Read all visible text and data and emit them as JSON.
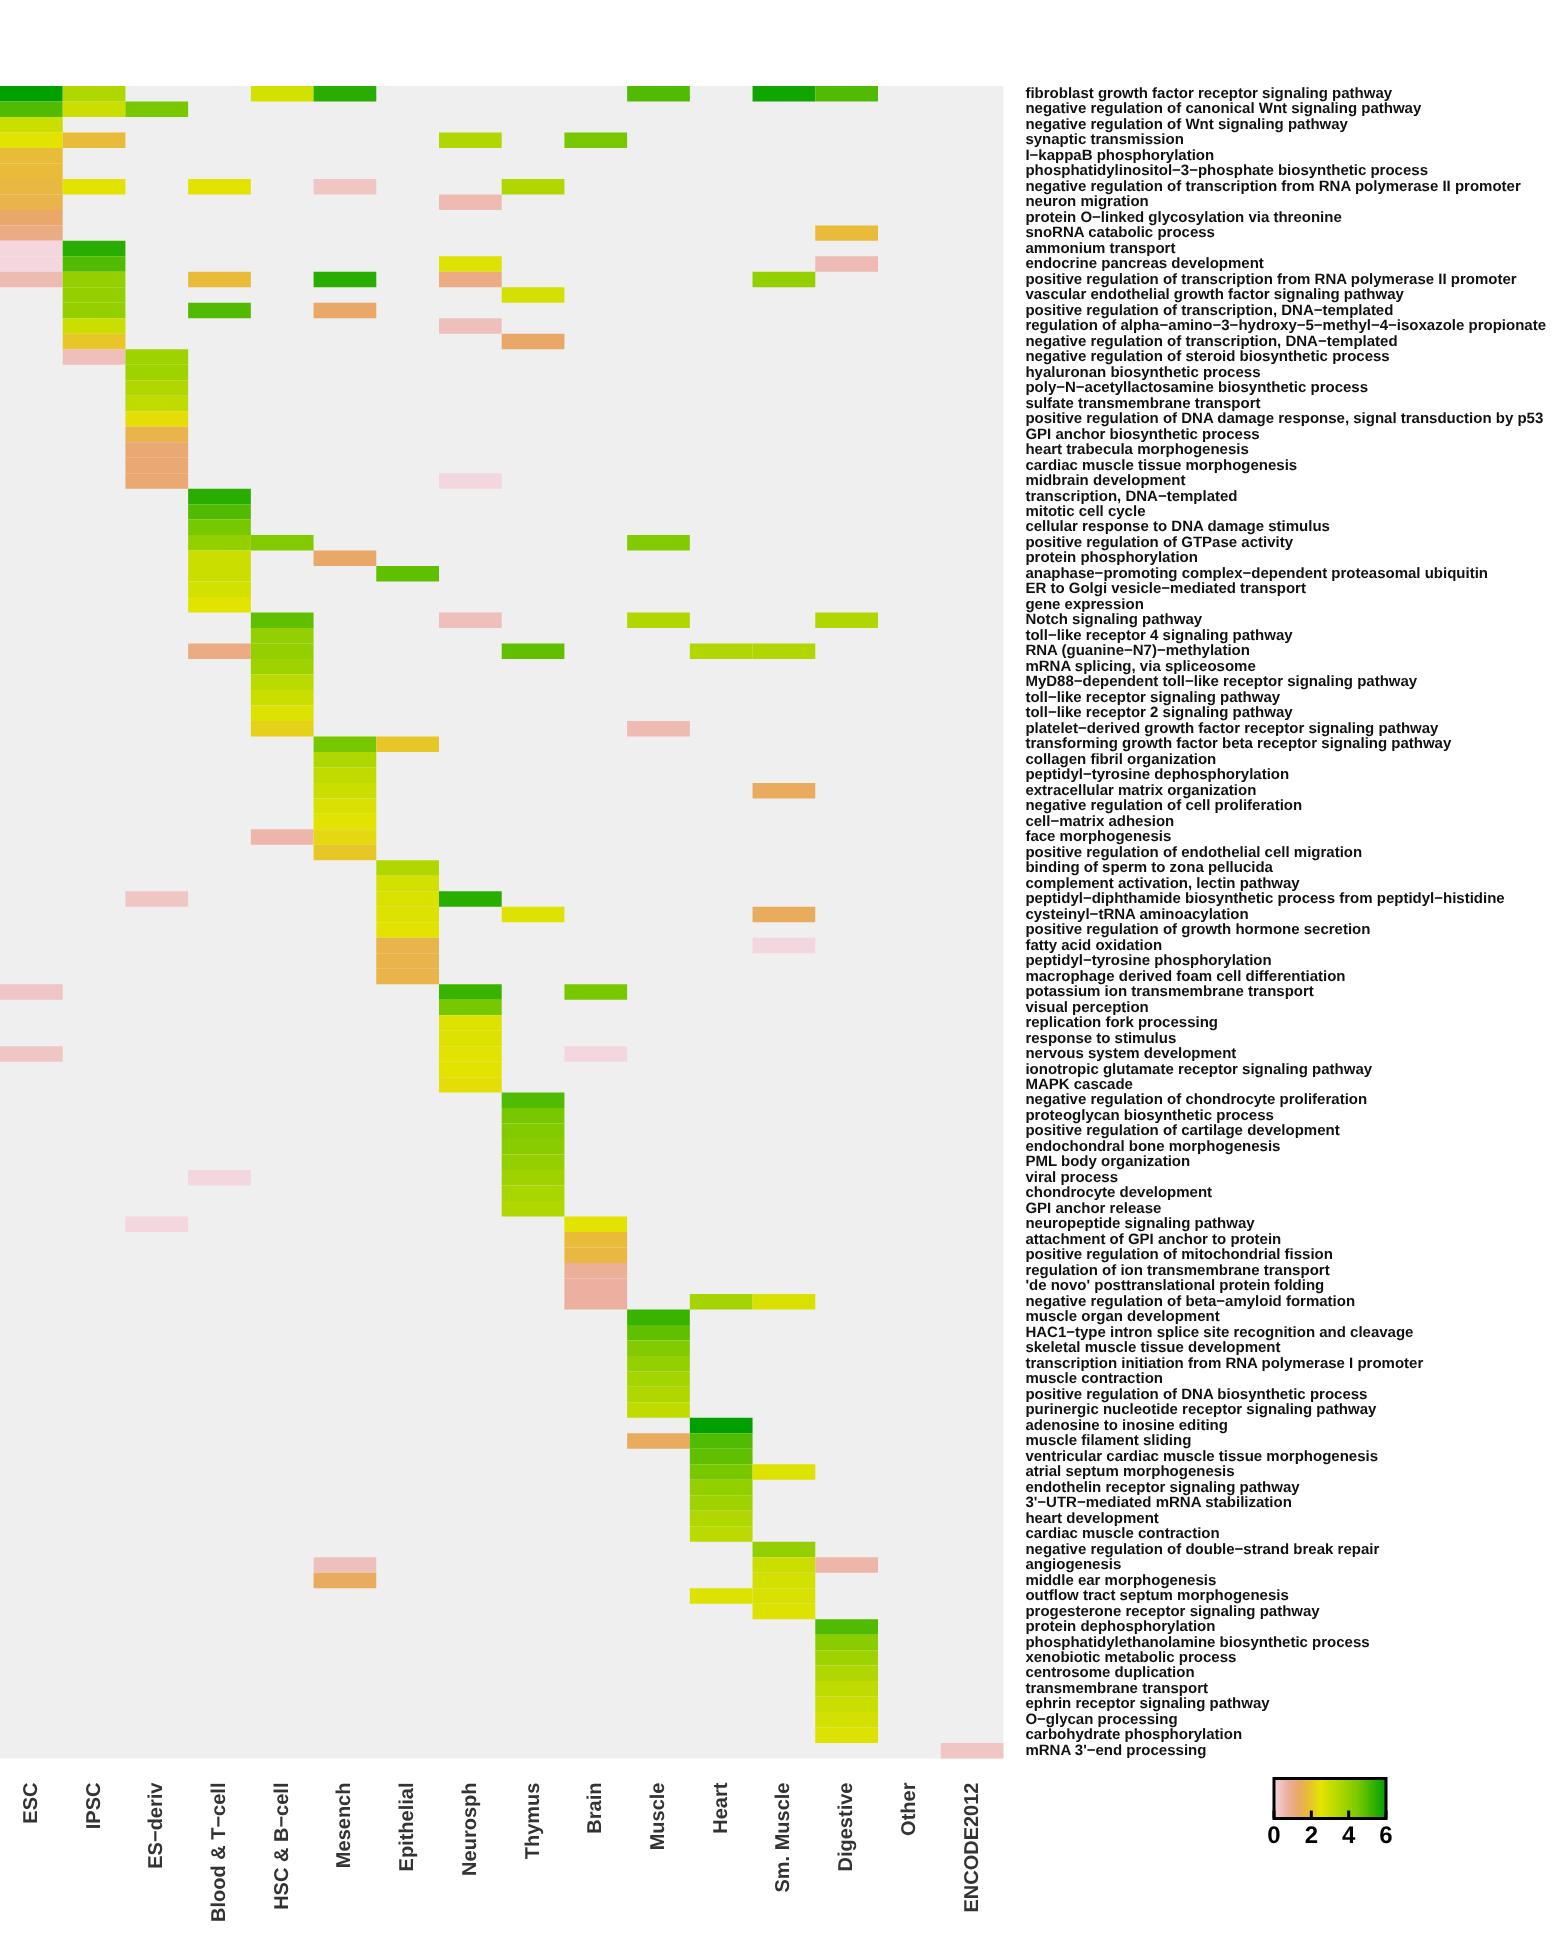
{
  "chart_data": {
    "type": "heatmap",
    "categories": [
      "ESC",
      "IPSC",
      "ES−deriv",
      "Blood & T−cell",
      "HSC & B−cell",
      "Mesench",
      "Epithelial",
      "Neurosph",
      "Thymus",
      "Brain",
      "Muscle",
      "Heart",
      "Sm. Muscle",
      "Digestive",
      "Other",
      "ENCODE2012"
    ],
    "y_categories": [
      "fibroblast growth factor receptor signaling pathway",
      "negative regulation of canonical Wnt signaling pathway",
      "negative regulation of Wnt signaling pathway",
      "synaptic transmission",
      "I−kappaB phosphorylation",
      "phosphatidylinositol−3−phosphate biosynthetic process",
      "negative regulation of transcription from RNA polymerase II promoter",
      "neuron migration",
      "protein O−linked glycosylation via threonine",
      "snoRNA catabolic process",
      "ammonium transport",
      "endocrine pancreas development",
      "positive regulation of transcription from RNA polymerase II promoter",
      "vascular endothelial growth factor signaling pathway",
      "positive regulation of transcription, DNA−templated",
      "regulation of alpha−amino−3−hydroxy−5−methyl−4−isoxazole propionate",
      "negative regulation of transcription, DNA−templated",
      "negative regulation of steroid biosynthetic process",
      "hyaluronan biosynthetic process",
      "poly−N−acetyllactosamine biosynthetic process",
      "sulfate transmembrane transport",
      "positive regulation of DNA damage response, signal transduction by p53",
      "GPI anchor biosynthetic process",
      "heart trabecula morphogenesis",
      "cardiac muscle tissue morphogenesis",
      "midbrain development",
      "transcription, DNA−templated",
      "mitotic cell cycle",
      "cellular response to DNA damage stimulus",
      "positive regulation of GTPase activity",
      "protein phosphorylation",
      "anaphase−promoting complex−dependent proteasomal ubiquitin",
      "ER to Golgi vesicle−mediated transport",
      "gene expression",
      "Notch signaling pathway",
      "toll−like receptor 4 signaling pathway",
      "RNA (guanine−N7)−methylation",
      "mRNA splicing, via spliceosome",
      "MyD88−dependent toll−like receptor signaling pathway",
      "toll−like receptor signaling pathway",
      "toll−like receptor 2 signaling pathway",
      "platelet−derived growth factor receptor signaling pathway",
      "transforming growth factor beta receptor signaling pathway",
      "collagen fibril organization",
      "peptidyl−tyrosine dephosphorylation",
      "extracellular matrix organization",
      "negative regulation of cell proliferation",
      "cell−matrix adhesion",
      "face morphogenesis",
      "positive regulation of endothelial cell migration",
      "binding of sperm to zona pellucida",
      "complement activation, lectin pathway",
      "peptidyl−diphthamide biosynthetic process from peptidyl−histidine",
      "cysteinyl−tRNA aminoacylation",
      "positive regulation of growth hormone secretion",
      "fatty acid oxidation",
      "peptidyl−tyrosine phosphorylation",
      "macrophage derived foam cell differentiation",
      "potassium ion transmembrane transport",
      "visual perception",
      "replication fork processing",
      "response to stimulus",
      "nervous system development",
      "ionotropic glutamate receptor signaling pathway",
      "MAPK cascade",
      "negative regulation of chondrocyte proliferation",
      "proteoglycan biosynthetic process",
      "positive regulation of cartilage development",
      "endochondral bone morphogenesis",
      "PML body organization",
      "viral process",
      "chondrocyte development",
      "GPI anchor release",
      "neuropeptide signaling pathway",
      "attachment of GPI anchor to protein",
      "positive regulation of mitochondrial fission",
      "regulation of ion transmembrane transport",
      "'de novo' posttranslational protein folding",
      "negative regulation of beta−amyloid formation",
      "muscle organ development",
      "HAC1−type intron splice site recognition and cleavage",
      "skeletal muscle tissue development",
      "transcription initiation from RNA polymerase I promoter",
      "muscle contraction",
      "positive regulation of DNA biosynthetic process",
      "purinergic nucleotide receptor signaling pathway",
      "adenosine to inosine editing",
      "muscle filament sliding",
      "ventricular cardiac muscle tissue morphogenesis",
      "atrial septum morphogenesis",
      "endothelin receptor signaling pathway",
      "3'−UTR−mediated mRNA stabilization",
      "heart development",
      "cardiac muscle contraction",
      "negative regulation of double−strand break repair",
      "angiogenesis",
      "middle ear morphogenesis",
      "outflow tract septum morphogenesis",
      "progesterone receptor signaling pathway",
      "protein dephosphorylation",
      "phosphatidylethanolamine biosynthetic process",
      "xenobiotic metabolic process",
      "centrosome duplication",
      "transmembrane transport",
      "ephrin receptor signaling pathway",
      "O−glycan processing",
      "carbohydrate phosphorylation",
      "mRNA 3'−end processing"
    ],
    "cells": [
      [
        6,
        3.5,
        null,
        null,
        2.8,
        5.5,
        null,
        null,
        null,
        null,
        5,
        null,
        5.8,
        5,
        null,
        null
      ],
      [
        5,
        3,
        4.5,
        null,
        null,
        null,
        null,
        null,
        null,
        null,
        null,
        null,
        null,
        null,
        null,
        null
      ],
      [
        3,
        null,
        null,
        null,
        null,
        null,
        null,
        null,
        null,
        null,
        null,
        null,
        null,
        null,
        null,
        null
      ],
      [
        2.5,
        1.8,
        null,
        null,
        null,
        null,
        null,
        3.5,
        null,
        4.5,
        null,
        null,
        null,
        null,
        null,
        null
      ],
      [
        1.8,
        null,
        null,
        null,
        null,
        null,
        null,
        null,
        null,
        null,
        null,
        null,
        null,
        null,
        null,
        null
      ],
      [
        1.8,
        null,
        null,
        null,
        null,
        null,
        null,
        null,
        null,
        null,
        null,
        null,
        null,
        null,
        null,
        null
      ],
      [
        1.7,
        2.5,
        null,
        2.5,
        null,
        0.3,
        null,
        null,
        3.5,
        null,
        null,
        null,
        null,
        null,
        null,
        null
      ],
      [
        1.6,
        null,
        null,
        null,
        null,
        null,
        null,
        0.5,
        null,
        null,
        null,
        null,
        null,
        null,
        null,
        null
      ],
      [
        1.3,
        null,
        null,
        null,
        null,
        null,
        null,
        null,
        null,
        null,
        null,
        null,
        null,
        null,
        null,
        null
      ],
      [
        1,
        null,
        null,
        null,
        null,
        null,
        null,
        null,
        null,
        null,
        null,
        null,
        null,
        1.8,
        null,
        null
      ],
      [
        0,
        5.5,
        null,
        null,
        null,
        null,
        null,
        null,
        null,
        null,
        null,
        null,
        null,
        null,
        null,
        null
      ],
      [
        0,
        5,
        null,
        null,
        null,
        null,
        null,
        2.6,
        null,
        null,
        null,
        null,
        null,
        0.5,
        null,
        null
      ],
      [
        0.5,
        4,
        null,
        1.8,
        null,
        5.5,
        null,
        1,
        null,
        null,
        null,
        null,
        4,
        null,
        null,
        null
      ],
      [
        null,
        4,
        null,
        null,
        null,
        null,
        null,
        null,
        2.8,
        null,
        null,
        null,
        null,
        null,
        null,
        null
      ],
      [
        null,
        4,
        null,
        5,
        null,
        1.3,
        null,
        null,
        null,
        null,
        null,
        null,
        null,
        null,
        null,
        null
      ],
      [
        null,
        3,
        null,
        null,
        null,
        null,
        null,
        0.4,
        null,
        null,
        null,
        null,
        null,
        null,
        null,
        null
      ],
      [
        null,
        2,
        null,
        null,
        null,
        null,
        null,
        null,
        1.3,
        null,
        null,
        null,
        null,
        null,
        null,
        null
      ],
      [
        null,
        0.4,
        3.8,
        null,
        null,
        null,
        null,
        null,
        null,
        null,
        null,
        null,
        null,
        null,
        null,
        null
      ],
      [
        null,
        null,
        3.8,
        null,
        null,
        null,
        null,
        null,
        null,
        null,
        null,
        null,
        null,
        null,
        null,
        null
      ],
      [
        null,
        null,
        3.5,
        null,
        null,
        null,
        null,
        null,
        null,
        null,
        null,
        null,
        null,
        null,
        null,
        null
      ],
      [
        null,
        null,
        3.2,
        null,
        null,
        null,
        null,
        null,
        null,
        null,
        null,
        null,
        null,
        null,
        null,
        null
      ],
      [
        null,
        null,
        2.4,
        null,
        null,
        null,
        null,
        null,
        null,
        null,
        null,
        null,
        null,
        null,
        null,
        null
      ],
      [
        null,
        null,
        1.6,
        null,
        null,
        null,
        null,
        null,
        null,
        null,
        null,
        null,
        null,
        null,
        null,
        null
      ],
      [
        null,
        null,
        1.2,
        null,
        null,
        null,
        null,
        null,
        null,
        null,
        null,
        null,
        null,
        null,
        null,
        null
      ],
      [
        null,
        null,
        1.2,
        null,
        null,
        null,
        null,
        null,
        null,
        null,
        null,
        null,
        null,
        null,
        null,
        null
      ],
      [
        null,
        null,
        1.2,
        null,
        null,
        null,
        null,
        0,
        null,
        null,
        null,
        null,
        null,
        null,
        null,
        null
      ],
      [
        null,
        null,
        null,
        5.5,
        null,
        null,
        null,
        null,
        null,
        null,
        null,
        null,
        null,
        null,
        null,
        null
      ],
      [
        null,
        null,
        null,
        5,
        null,
        null,
        null,
        null,
        null,
        null,
        null,
        null,
        null,
        null,
        null,
        null
      ],
      [
        null,
        null,
        null,
        4.5,
        null,
        null,
        null,
        null,
        null,
        null,
        null,
        null,
        null,
        null,
        null,
        null
      ],
      [
        null,
        null,
        null,
        4,
        4.3,
        null,
        null,
        null,
        null,
        null,
        4.3,
        null,
        null,
        null,
        null,
        null
      ],
      [
        null,
        null,
        null,
        3,
        null,
        1.3,
        null,
        null,
        null,
        null,
        null,
        null,
        null,
        null,
        null,
        null
      ],
      [
        null,
        null,
        null,
        3,
        null,
        null,
        4.8,
        null,
        null,
        null,
        null,
        null,
        null,
        null,
        null,
        null
      ],
      [
        null,
        null,
        null,
        2.8,
        null,
        null,
        null,
        null,
        null,
        null,
        null,
        null,
        null,
        null,
        null,
        null
      ],
      [
        null,
        null,
        null,
        2.5,
        null,
        null,
        null,
        null,
        null,
        null,
        null,
        null,
        null,
        null,
        null,
        null
      ],
      [
        null,
        null,
        null,
        null,
        4.8,
        null,
        null,
        0.4,
        null,
        null,
        3.5,
        null,
        null,
        3.5,
        null,
        null
      ],
      [
        null,
        null,
        null,
        null,
        4,
        null,
        null,
        null,
        null,
        null,
        null,
        null,
        null,
        null,
        null,
        null
      ],
      [
        null,
        null,
        null,
        1,
        4,
        null,
        null,
        null,
        4.8,
        null,
        null,
        3.5,
        3.5,
        null,
        null,
        null
      ],
      [
        null,
        null,
        null,
        null,
        3.8,
        null,
        null,
        null,
        null,
        null,
        null,
        null,
        null,
        null,
        null,
        null
      ],
      [
        null,
        null,
        null,
        null,
        3.3,
        null,
        null,
        null,
        null,
        null,
        null,
        null,
        null,
        null,
        null,
        null
      ],
      [
        null,
        null,
        null,
        null,
        3,
        null,
        null,
        null,
        null,
        null,
        null,
        null,
        null,
        null,
        null,
        null
      ],
      [
        null,
        null,
        null,
        null,
        2.6,
        null,
        null,
        null,
        null,
        null,
        null,
        null,
        null,
        null,
        null,
        null
      ],
      [
        null,
        null,
        null,
        null,
        2.2,
        null,
        null,
        null,
        null,
        null,
        0.5,
        null,
        null,
        null,
        null,
        null
      ],
      [
        null,
        null,
        null,
        null,
        null,
        4.5,
        2,
        null,
        null,
        null,
        null,
        null,
        null,
        null,
        null,
        null
      ],
      [
        null,
        null,
        null,
        null,
        null,
        3.5,
        null,
        null,
        null,
        null,
        null,
        null,
        null,
        null,
        null,
        null
      ],
      [
        null,
        null,
        null,
        null,
        null,
        3.2,
        null,
        null,
        null,
        null,
        null,
        null,
        null,
        null,
        null,
        null
      ],
      [
        null,
        null,
        null,
        null,
        null,
        3,
        null,
        null,
        null,
        null,
        null,
        null,
        1.4,
        null,
        null,
        null
      ],
      [
        null,
        null,
        null,
        null,
        null,
        2.7,
        null,
        null,
        null,
        null,
        null,
        null,
        null,
        null,
        null,
        null
      ],
      [
        null,
        null,
        null,
        null,
        null,
        2.5,
        null,
        null,
        null,
        null,
        null,
        null,
        null,
        null,
        null,
        null
      ],
      [
        null,
        null,
        null,
        null,
        0.6,
        2.3,
        null,
        null,
        null,
        null,
        null,
        null,
        null,
        null,
        null,
        null
      ],
      [
        null,
        null,
        null,
        null,
        null,
        2,
        null,
        null,
        null,
        null,
        null,
        null,
        null,
        null,
        null,
        null
      ],
      [
        null,
        null,
        null,
        null,
        null,
        null,
        3.5,
        null,
        null,
        null,
        null,
        null,
        null,
        null,
        null,
        null
      ],
      [
        null,
        null,
        null,
        null,
        null,
        null,
        2.8,
        null,
        null,
        null,
        null,
        null,
        null,
        null,
        null,
        null
      ],
      [
        null,
        null,
        0.3,
        null,
        null,
        null,
        2.7,
        5.5,
        null,
        null,
        null,
        null,
        null,
        null,
        null,
        null
      ],
      [
        null,
        null,
        null,
        null,
        null,
        null,
        2.6,
        null,
        2.6,
        null,
        null,
        null,
        1.4,
        null,
        null,
        null
      ],
      [
        null,
        null,
        null,
        null,
        null,
        null,
        2.5,
        null,
        null,
        null,
        null,
        null,
        null,
        null,
        null,
        null
      ],
      [
        null,
        null,
        null,
        null,
        null,
        null,
        1.6,
        null,
        null,
        null,
        null,
        null,
        0,
        null,
        null,
        null
      ],
      [
        null,
        null,
        null,
        null,
        null,
        null,
        1.6,
        null,
        null,
        null,
        null,
        null,
        null,
        null,
        null,
        null
      ],
      [
        null,
        null,
        null,
        null,
        null,
        null,
        1.6,
        null,
        null,
        null,
        null,
        null,
        null,
        null,
        null,
        null
      ],
      [
        0.3,
        null,
        null,
        null,
        null,
        null,
        null,
        5.3,
        null,
        4.5,
        null,
        null,
        null,
        null,
        null,
        null
      ],
      [
        null,
        null,
        null,
        null,
        null,
        null,
        null,
        4.5,
        null,
        null,
        null,
        null,
        null,
        null,
        null,
        null
      ],
      [
        null,
        null,
        null,
        null,
        null,
        null,
        null,
        2.6,
        null,
        null,
        null,
        null,
        null,
        null,
        null,
        null
      ],
      [
        null,
        null,
        null,
        null,
        null,
        null,
        null,
        2.6,
        null,
        null,
        null,
        null,
        null,
        null,
        null,
        null
      ],
      [
        0.3,
        null,
        null,
        null,
        null,
        null,
        null,
        2.5,
        null,
        0,
        null,
        null,
        null,
        null,
        null,
        null
      ],
      [
        null,
        null,
        null,
        null,
        null,
        null,
        null,
        2.5,
        null,
        null,
        null,
        null,
        null,
        null,
        null,
        null
      ],
      [
        null,
        null,
        null,
        null,
        null,
        null,
        null,
        2.4,
        null,
        null,
        null,
        null,
        null,
        null,
        null,
        null
      ],
      [
        null,
        null,
        null,
        null,
        null,
        null,
        null,
        null,
        5,
        null,
        null,
        null,
        null,
        null,
        null,
        null
      ],
      [
        null,
        null,
        null,
        null,
        null,
        null,
        null,
        null,
        4.5,
        null,
        null,
        null,
        null,
        null,
        null,
        null
      ],
      [
        null,
        null,
        null,
        null,
        null,
        null,
        null,
        null,
        4.3,
        null,
        null,
        null,
        null,
        null,
        null,
        null
      ],
      [
        null,
        null,
        null,
        null,
        null,
        null,
        null,
        null,
        4.2,
        null,
        null,
        null,
        null,
        null,
        null,
        null
      ],
      [
        null,
        null,
        null,
        null,
        null,
        null,
        null,
        null,
        4,
        null,
        null,
        null,
        null,
        null,
        null,
        null
      ],
      [
        null,
        null,
        null,
        0,
        null,
        null,
        null,
        null,
        3.8,
        null,
        null,
        null,
        null,
        null,
        null,
        null
      ],
      [
        null,
        null,
        null,
        null,
        null,
        null,
        null,
        null,
        3.6,
        null,
        null,
        null,
        null,
        null,
        null,
        null
      ],
      [
        null,
        null,
        null,
        null,
        null,
        null,
        null,
        null,
        3.5,
        null,
        null,
        null,
        null,
        null,
        null,
        null
      ],
      [
        null,
        null,
        0,
        null,
        null,
        null,
        null,
        null,
        null,
        2.5,
        null,
        null,
        null,
        null,
        null,
        null
      ],
      [
        null,
        null,
        null,
        null,
        null,
        null,
        null,
        null,
        null,
        1.8,
        null,
        null,
        null,
        null,
        null,
        null
      ],
      [
        null,
        null,
        null,
        null,
        null,
        null,
        null,
        null,
        null,
        1.7,
        null,
        null,
        null,
        null,
        null,
        null
      ],
      [
        null,
        null,
        null,
        null,
        null,
        null,
        null,
        null,
        null,
        0.8,
        null,
        null,
        null,
        null,
        null,
        null
      ],
      [
        null,
        null,
        null,
        null,
        null,
        null,
        null,
        null,
        null,
        0.7,
        null,
        null,
        null,
        null,
        null,
        null
      ],
      [
        null,
        null,
        null,
        null,
        null,
        null,
        null,
        null,
        null,
        0.7,
        null,
        3.7,
        2.7,
        null,
        null,
        null
      ],
      [
        null,
        null,
        null,
        null,
        null,
        null,
        null,
        null,
        null,
        null,
        5.3,
        null,
        null,
        null,
        null,
        null
      ],
      [
        null,
        null,
        null,
        null,
        null,
        null,
        null,
        null,
        null,
        null,
        4.8,
        null,
        null,
        null,
        null,
        null
      ],
      [
        null,
        null,
        null,
        null,
        null,
        null,
        null,
        null,
        null,
        null,
        4.3,
        null,
        null,
        null,
        null,
        null
      ],
      [
        null,
        null,
        null,
        null,
        null,
        null,
        null,
        null,
        null,
        null,
        4,
        null,
        null,
        null,
        null,
        null
      ],
      [
        null,
        null,
        null,
        null,
        null,
        null,
        null,
        null,
        null,
        null,
        3.7,
        null,
        null,
        null,
        null,
        null
      ],
      [
        null,
        null,
        null,
        null,
        null,
        null,
        null,
        null,
        null,
        null,
        3.5,
        null,
        null,
        null,
        null,
        null
      ],
      [
        null,
        null,
        null,
        null,
        null,
        null,
        null,
        null,
        null,
        null,
        3.2,
        null,
        null,
        null,
        null,
        null
      ],
      [
        null,
        null,
        null,
        null,
        null,
        null,
        null,
        null,
        null,
        null,
        null,
        6,
        null,
        null,
        null,
        null
      ],
      [
        null,
        null,
        null,
        null,
        null,
        null,
        null,
        null,
        null,
        null,
        1.4,
        5,
        null,
        null,
        null,
        null
      ],
      [
        null,
        null,
        null,
        null,
        null,
        null,
        null,
        null,
        null,
        null,
        null,
        4.8,
        null,
        null,
        null,
        null
      ],
      [
        null,
        null,
        null,
        null,
        null,
        null,
        null,
        null,
        null,
        null,
        null,
        4.5,
        2.6,
        null,
        null,
        null
      ],
      [
        null,
        null,
        null,
        null,
        null,
        null,
        null,
        null,
        null,
        null,
        null,
        4,
        null,
        null,
        null,
        null
      ],
      [
        null,
        null,
        null,
        null,
        null,
        null,
        null,
        null,
        null,
        null,
        null,
        3.8,
        null,
        null,
        null,
        null
      ],
      [
        null,
        null,
        null,
        null,
        null,
        null,
        null,
        null,
        null,
        null,
        null,
        3.5,
        null,
        null,
        null,
        null
      ],
      [
        null,
        null,
        null,
        null,
        null,
        null,
        null,
        null,
        null,
        null,
        null,
        3.3,
        null,
        null,
        null,
        null
      ],
      [
        null,
        null,
        null,
        null,
        null,
        null,
        null,
        null,
        null,
        null,
        null,
        null,
        4,
        null,
        null,
        null
      ],
      [
        null,
        null,
        null,
        null,
        null,
        0.4,
        null,
        null,
        null,
        null,
        null,
        null,
        3,
        0.6,
        null,
        null
      ],
      [
        null,
        null,
        null,
        null,
        null,
        1.4,
        null,
        null,
        null,
        null,
        null,
        null,
        2.8,
        null,
        null,
        null
      ],
      [
        null,
        null,
        null,
        null,
        null,
        null,
        null,
        null,
        null,
        null,
        null,
        2.6,
        2.7,
        null,
        null,
        null
      ],
      [
        null,
        null,
        null,
        null,
        null,
        null,
        null,
        null,
        null,
        null,
        null,
        null,
        2.6,
        null,
        null,
        null
      ],
      [
        null,
        null,
        null,
        null,
        null,
        null,
        null,
        null,
        null,
        null,
        null,
        null,
        null,
        5,
        null,
        null
      ],
      [
        null,
        null,
        null,
        null,
        null,
        null,
        null,
        null,
        null,
        null,
        null,
        null,
        null,
        4.2,
        null,
        null
      ],
      [
        null,
        null,
        null,
        null,
        null,
        null,
        null,
        null,
        null,
        null,
        null,
        null,
        null,
        3.8,
        null,
        null
      ],
      [
        null,
        null,
        null,
        null,
        null,
        null,
        null,
        null,
        null,
        null,
        null,
        null,
        null,
        3.5,
        null,
        null
      ],
      [
        null,
        null,
        null,
        null,
        null,
        null,
        null,
        null,
        null,
        null,
        null,
        null,
        null,
        3.2,
        null,
        null
      ],
      [
        null,
        null,
        null,
        null,
        null,
        null,
        null,
        null,
        null,
        null,
        null,
        null,
        null,
        3,
        null,
        null
      ],
      [
        null,
        null,
        null,
        null,
        null,
        null,
        null,
        null,
        null,
        null,
        null,
        null,
        null,
        2.8,
        null,
        null
      ],
      [
        null,
        null,
        null,
        null,
        null,
        null,
        null,
        null,
        null,
        null,
        null,
        null,
        null,
        2.6,
        null,
        null
      ],
      [
        null,
        null,
        null,
        null,
        null,
        null,
        null,
        null,
        null,
        null,
        null,
        null,
        null,
        null,
        null,
        0.3
      ]
    ],
    "clim": [
      0,
      6
    ],
    "cticks": [
      0,
      2,
      4,
      6
    ]
  }
}
